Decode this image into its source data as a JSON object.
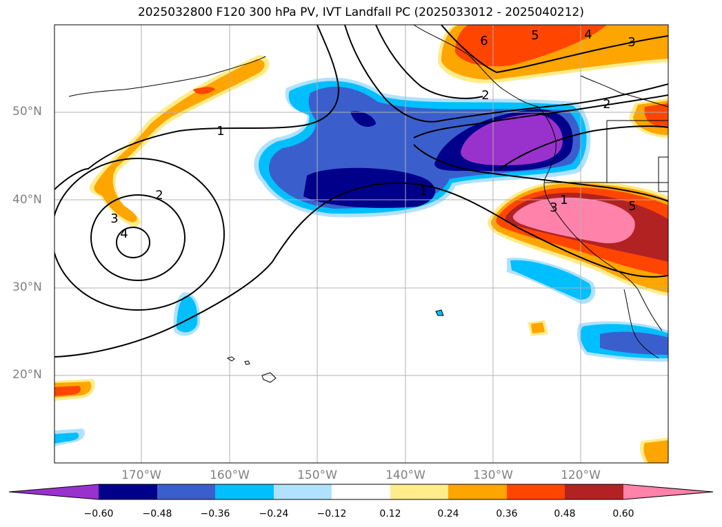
{
  "title": "2025032800 F120 300 hPa PV, IVT Landfall PC (2025033012 - 2025040212)",
  "axes": {
    "lat_labels": [
      "50°N",
      "40°N",
      "30°N",
      "20°N"
    ],
    "lon_labels": [
      "170°W",
      "160°W",
      "150°W",
      "140°W",
      "130°W",
      "120°W"
    ]
  },
  "contour_labels": [
    "1",
    "2",
    "3",
    "4",
    "5",
    "6",
    "1",
    "2",
    "3",
    "4",
    "5",
    "2",
    "3",
    "1"
  ],
  "colorbar": {
    "ticks": [
      "−0.60",
      "−0.48",
      "−0.36",
      "−0.24",
      "−0.12",
      "0.12",
      "0.24",
      "0.36",
      "0.48",
      "0.60"
    ],
    "colors": [
      "#9932cc",
      "#00008b",
      "#3a5fcd",
      "#00bfff",
      "#b0e2ff",
      "#ffffff",
      "#ffec8b",
      "#ffa500",
      "#ff4500",
      "#b22222",
      "#ff82ab"
    ]
  }
}
